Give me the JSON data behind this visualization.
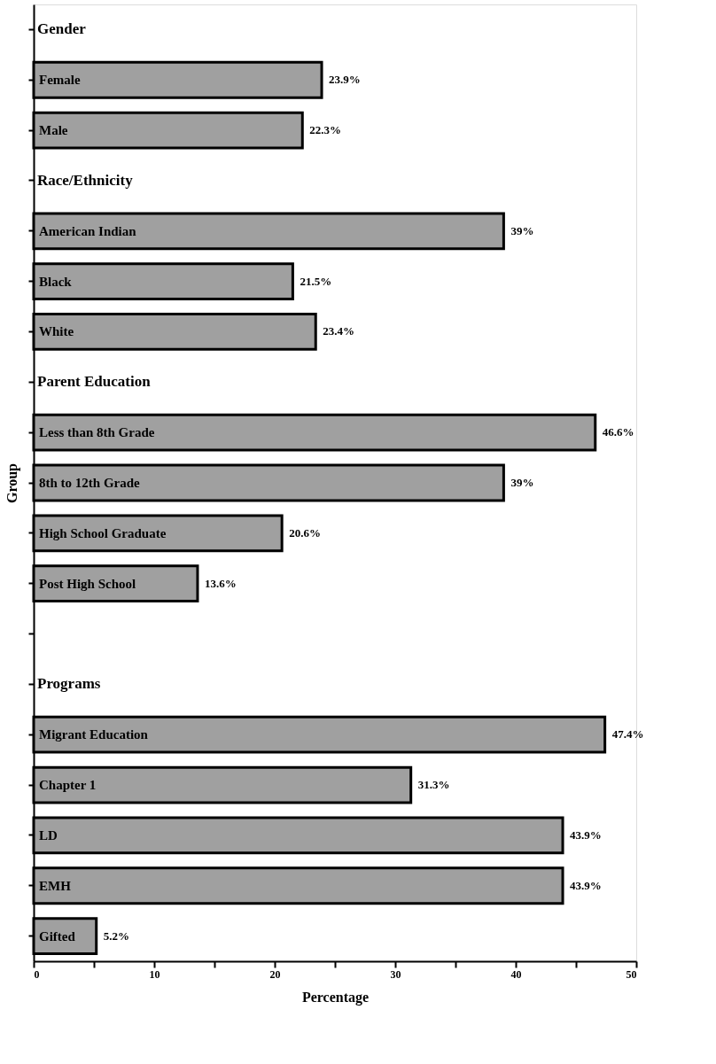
{
  "chart_data": {
    "type": "bar",
    "orientation": "horizontal",
    "xlabel": "Percentage",
    "ylabel": "Group",
    "categories": [
      "Gender",
      "Female",
      "Male",
      "Race/Ethnicity",
      "American Indian",
      "Black",
      "White",
      "Parent Education",
      "Less than 8th Grade",
      "8th to 12th Grade",
      "High School Graduate",
      "Post High School",
      null,
      "Programs",
      "Migrant Education",
      "Chapter 1",
      "LD",
      "EMH",
      "Gifted"
    ],
    "values": [
      null,
      23.9,
      22.3,
      null,
      39,
      21.5,
      23.4,
      null,
      46.6,
      39,
      20.6,
      13.6,
      null,
      null,
      47.4,
      31.3,
      43.9,
      43.9,
      5.2
    ],
    "value_labels": [
      null,
      "23.9%",
      "22.3%",
      null,
      "39%",
      "21.5%",
      "23.4%",
      null,
      "46.6%",
      "39%",
      "20.6%",
      "13.6%",
      null,
      null,
      "47.4%",
      "31.3%",
      "43.9%",
      "43.9%",
      "5.2%"
    ],
    "color": "#a0a0a0",
    "xlim": [
      0,
      50
    ],
    "xticks": [
      0,
      {
        "value": 5,
        "label": null
      },
      10,
      {
        "value": 15,
        "label": null
      },
      20,
      {
        "value": 25,
        "label": null
      },
      30,
      {
        "value": 35,
        "label": null
      },
      40,
      {
        "value": 45,
        "label": null
      },
      50
    ],
    "grid": false
  }
}
